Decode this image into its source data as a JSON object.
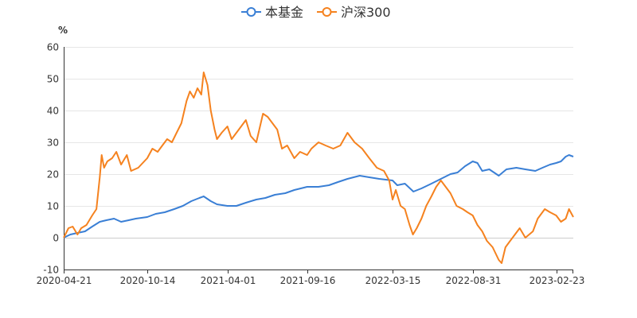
{
  "chart_data": {
    "type": "line",
    "unit": "%",
    "ylim": [
      -10,
      60
    ],
    "y_ticks": [
      60,
      50,
      40,
      30,
      20,
      10,
      0,
      -10
    ],
    "x_tick_labels": [
      "2020-04-21",
      "2020-10-14",
      "2021-04-01",
      "2021-09-16",
      "2022-03-15",
      "2022-08-31",
      "2023-02-23"
    ],
    "x_start": "2020-04-21",
    "x_end": "2023-03-31",
    "grid": "horizontal",
    "legend_position": "top-center",
    "series": [
      {
        "name": "本基金",
        "color": "#3a7fd5",
        "points": [
          [
            "2020-04-21",
            0
          ],
          [
            "2020-05-05",
            1.0
          ],
          [
            "2020-05-20",
            1.5
          ],
          [
            "2020-06-05",
            2.0
          ],
          [
            "2020-06-20",
            3.5
          ],
          [
            "2020-07-06",
            5.0
          ],
          [
            "2020-07-20",
            5.5
          ],
          [
            "2020-08-05",
            6.0
          ],
          [
            "2020-08-20",
            5.0
          ],
          [
            "2020-09-05",
            5.5
          ],
          [
            "2020-09-20",
            6.0
          ],
          [
            "2020-10-14",
            6.5
          ],
          [
            "2020-11-01",
            7.5
          ],
          [
            "2020-11-20",
            8.0
          ],
          [
            "2020-12-10",
            9.0
          ],
          [
            "2020-12-28",
            10.0
          ],
          [
            "2021-01-15",
            11.5
          ],
          [
            "2021-02-01",
            12.5
          ],
          [
            "2021-02-10",
            13.0
          ],
          [
            "2021-02-25",
            11.5
          ],
          [
            "2021-03-10",
            10.5
          ],
          [
            "2021-04-01",
            10.0
          ],
          [
            "2021-04-20",
            10.0
          ],
          [
            "2021-05-10",
            11.0
          ],
          [
            "2021-06-01",
            12.0
          ],
          [
            "2021-06-20",
            12.5
          ],
          [
            "2021-07-10",
            13.5
          ],
          [
            "2021-08-01",
            14.0
          ],
          [
            "2021-08-20",
            15.0
          ],
          [
            "2021-09-16",
            16.0
          ],
          [
            "2021-10-10",
            16.0
          ],
          [
            "2021-11-01",
            16.5
          ],
          [
            "2021-11-20",
            17.5
          ],
          [
            "2021-12-10",
            18.5
          ],
          [
            "2022-01-05",
            19.5
          ],
          [
            "2022-01-25",
            19.0
          ],
          [
            "2022-02-15",
            18.5
          ],
          [
            "2022-03-15",
            18.0
          ],
          [
            "2022-03-25",
            16.5
          ],
          [
            "2022-04-10",
            17.0
          ],
          [
            "2022-04-28",
            14.5
          ],
          [
            "2022-05-15",
            15.5
          ],
          [
            "2022-06-05",
            17.0
          ],
          [
            "2022-06-25",
            18.5
          ],
          [
            "2022-07-15",
            20.0
          ],
          [
            "2022-07-30",
            20.5
          ],
          [
            "2022-08-15",
            22.5
          ],
          [
            "2022-08-31",
            24.0
          ],
          [
            "2022-09-10",
            23.5
          ],
          [
            "2022-09-20",
            21.0
          ],
          [
            "2022-10-05",
            21.5
          ],
          [
            "2022-10-25",
            19.5
          ],
          [
            "2022-11-10",
            21.5
          ],
          [
            "2022-12-01",
            22.0
          ],
          [
            "2022-12-20",
            21.5
          ],
          [
            "2023-01-10",
            21.0
          ],
          [
            "2023-01-25",
            22.0
          ],
          [
            "2023-02-10",
            23.0
          ],
          [
            "2023-02-23",
            23.5
          ],
          [
            "2023-03-05",
            24.0
          ],
          [
            "2023-03-15",
            25.5
          ],
          [
            "2023-03-22",
            26.0
          ],
          [
            "2023-03-31",
            25.5
          ]
        ]
      },
      {
        "name": "沪深300",
        "color": "#f5821f",
        "points": [
          [
            "2020-04-21",
            0
          ],
          [
            "2020-05-01",
            3.0
          ],
          [
            "2020-05-10",
            3.5
          ],
          [
            "2020-05-20",
            1.0
          ],
          [
            "2020-05-28",
            3.0
          ],
          [
            "2020-06-08",
            4.0
          ],
          [
            "2020-06-20",
            7.0
          ],
          [
            "2020-06-29",
            9.0
          ],
          [
            "2020-07-06",
            19.0
          ],
          [
            "2020-07-10",
            26.0
          ],
          [
            "2020-07-15",
            22.0
          ],
          [
            "2020-07-22",
            24.0
          ],
          [
            "2020-08-01",
            25.0
          ],
          [
            "2020-08-10",
            27.0
          ],
          [
            "2020-08-20",
            23.0
          ],
          [
            "2020-09-01",
            26.0
          ],
          [
            "2020-09-10",
            21.0
          ],
          [
            "2020-09-25",
            22.0
          ],
          [
            "2020-10-14",
            25.0
          ],
          [
            "2020-10-25",
            28.0
          ],
          [
            "2020-11-05",
            27.0
          ],
          [
            "2020-11-15",
            29.0
          ],
          [
            "2020-11-25",
            31.0
          ],
          [
            "2020-12-05",
            30.0
          ],
          [
            "2020-12-15",
            33.0
          ],
          [
            "2020-12-25",
            36.0
          ],
          [
            "2021-01-05",
            43.0
          ],
          [
            "2021-01-12",
            46.0
          ],
          [
            "2021-01-20",
            44.0
          ],
          [
            "2021-01-28",
            47.0
          ],
          [
            "2021-02-05",
            45.0
          ],
          [
            "2021-02-10",
            52.0
          ],
          [
            "2021-02-18",
            48.0
          ],
          [
            "2021-02-25",
            40.0
          ],
          [
            "2021-03-05",
            34.0
          ],
          [
            "2021-03-10",
            31.0
          ],
          [
            "2021-03-20",
            33.0
          ],
          [
            "2021-04-01",
            35.0
          ],
          [
            "2021-04-10",
            31.0
          ],
          [
            "2021-04-25",
            34.0
          ],
          [
            "2021-05-10",
            37.0
          ],
          [
            "2021-05-20",
            32.0
          ],
          [
            "2021-06-01",
            30.0
          ],
          [
            "2021-06-15",
            39.0
          ],
          [
            "2021-06-25",
            38.0
          ],
          [
            "2021-07-05",
            36.0
          ],
          [
            "2021-07-15",
            34.0
          ],
          [
            "2021-07-25",
            28.0
          ],
          [
            "2021-08-05",
            29.0
          ],
          [
            "2021-08-20",
            25.0
          ],
          [
            "2021-09-01",
            27.0
          ],
          [
            "2021-09-16",
            26.0
          ],
          [
            "2021-09-25",
            28.0
          ],
          [
            "2021-10-10",
            30.0
          ],
          [
            "2021-10-25",
            29.0
          ],
          [
            "2021-11-10",
            28.0
          ],
          [
            "2021-11-25",
            29.0
          ],
          [
            "2021-12-10",
            33.0
          ],
          [
            "2021-12-25",
            30.0
          ],
          [
            "2022-01-10",
            28.0
          ],
          [
            "2022-01-25",
            25.0
          ],
          [
            "2022-02-10",
            22.0
          ],
          [
            "2022-02-25",
            21.0
          ],
          [
            "2022-03-08",
            18.0
          ],
          [
            "2022-03-15",
            12.0
          ],
          [
            "2022-03-22",
            15.0
          ],
          [
            "2022-04-01",
            10.0
          ],
          [
            "2022-04-10",
            9.0
          ],
          [
            "2022-04-20",
            4.0
          ],
          [
            "2022-04-27",
            1.0
          ],
          [
            "2022-05-05",
            3.0
          ],
          [
            "2022-05-15",
            6.0
          ],
          [
            "2022-05-25",
            10.0
          ],
          [
            "2022-06-05",
            13.0
          ],
          [
            "2022-06-15",
            16.0
          ],
          [
            "2022-06-25",
            18.0
          ],
          [
            "2022-07-05",
            16.0
          ],
          [
            "2022-07-15",
            14.0
          ],
          [
            "2022-07-28",
            10.0
          ],
          [
            "2022-08-10",
            9.0
          ],
          [
            "2022-08-20",
            8.0
          ],
          [
            "2022-08-31",
            7.0
          ],
          [
            "2022-09-10",
            4.0
          ],
          [
            "2022-09-20",
            2.0
          ],
          [
            "2022-09-30",
            -1.0
          ],
          [
            "2022-10-12",
            -3.0
          ],
          [
            "2022-10-25",
            -7.0
          ],
          [
            "2022-10-31",
            -8.0
          ],
          [
            "2022-11-08",
            -3.0
          ],
          [
            "2022-11-18",
            -1.0
          ],
          [
            "2022-11-28",
            1.0
          ],
          [
            "2022-12-08",
            3.0
          ],
          [
            "2022-12-20",
            0.0
          ],
          [
            "2023-01-05",
            2.0
          ],
          [
            "2023-01-15",
            6.0
          ],
          [
            "2023-01-30",
            9.0
          ],
          [
            "2023-02-10",
            8.0
          ],
          [
            "2023-02-23",
            7.0
          ],
          [
            "2023-03-05",
            5.0
          ],
          [
            "2023-03-15",
            6.0
          ],
          [
            "2023-03-22",
            9.0
          ],
          [
            "2023-03-31",
            6.5
          ]
        ]
      }
    ]
  }
}
